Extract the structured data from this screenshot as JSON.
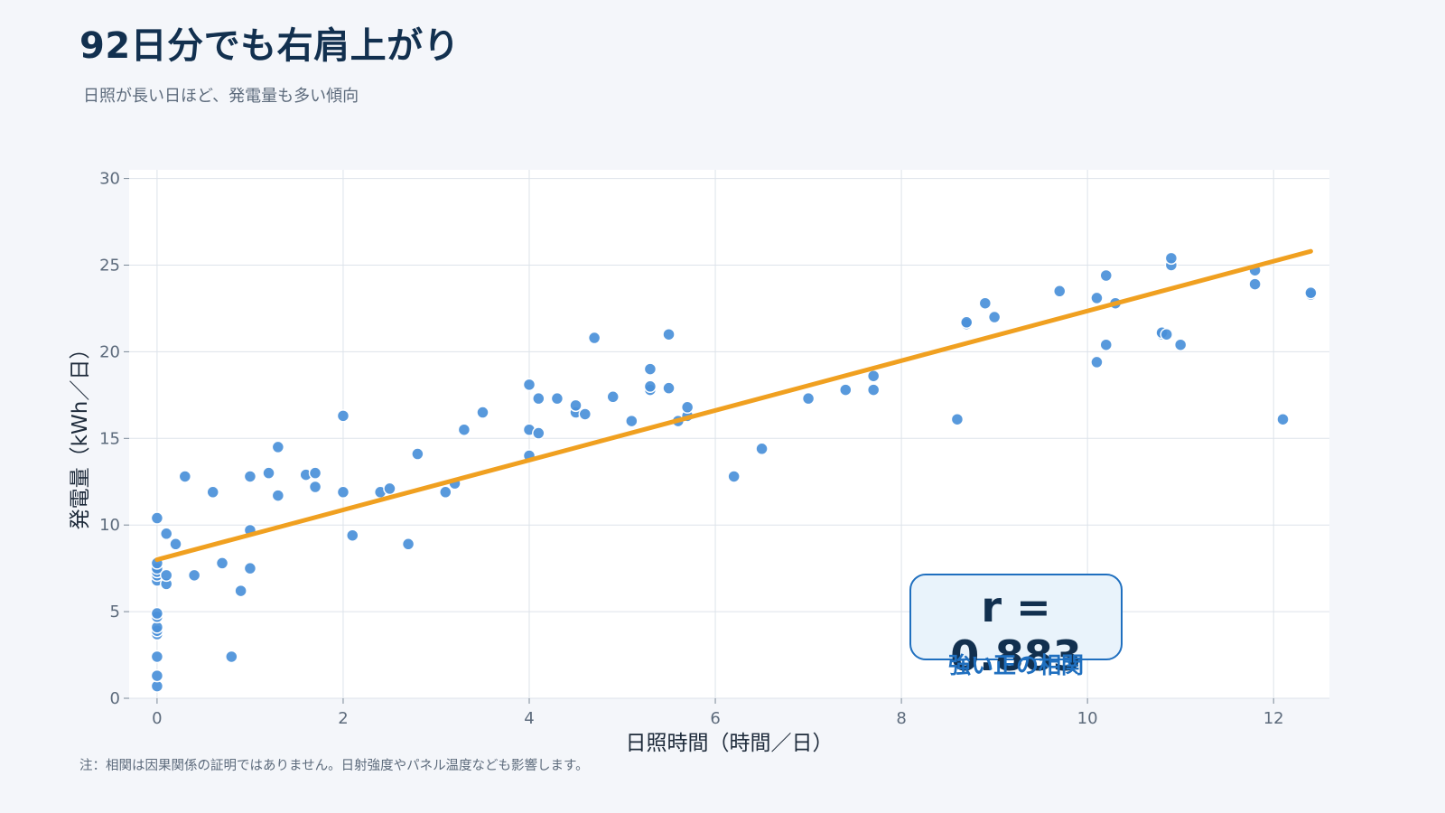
{
  "header": {
    "title": "92日分でも右肩上がり",
    "subtitle": "日照が長い日ほど、発電量も多い傾向"
  },
  "footer": {
    "note": "注：相関は因果関係の証明ではありません。日射強度やパネル温度なども影響します。"
  },
  "annotation": {
    "value": "r = 0.883",
    "caption": "強い正の相関"
  },
  "colors": {
    "point": "#4a90d9",
    "trend": "#f0a020",
    "grid": "#dde3ea",
    "plot_bg": "#ffffff"
  },
  "chart_data": {
    "type": "scatter",
    "xlabel": "日照時間（時間／日）",
    "ylabel": "発電量（kWh／日）",
    "xlim": [
      -0.3,
      12.6
    ],
    "ylim": [
      0,
      30.5
    ],
    "xticks": [
      0,
      2,
      4,
      6,
      8,
      10,
      12
    ],
    "yticks": [
      0,
      5,
      10,
      15,
      20,
      25,
      30
    ],
    "grid": true,
    "trendline": {
      "x": [
        0,
        12.4
      ],
      "y": [
        8.0,
        25.8
      ]
    },
    "points": [
      [
        0,
        0.7
      ],
      [
        0,
        1.3
      ],
      [
        0,
        2.4
      ],
      [
        0,
        3.7
      ],
      [
        0,
        3.9
      ],
      [
        0,
        4.1
      ],
      [
        0,
        4.7
      ],
      [
        0,
        4.9
      ],
      [
        0,
        6.8
      ],
      [
        0,
        7.1
      ],
      [
        0,
        7.3
      ],
      [
        0,
        7.5
      ],
      [
        0,
        7.8
      ],
      [
        0,
        10.4
      ],
      [
        0.1,
        6.6
      ],
      [
        0.1,
        7.1
      ],
      [
        0.1,
        9.5
      ],
      [
        0.2,
        8.9
      ],
      [
        0.3,
        12.8
      ],
      [
        0.4,
        7.1
      ],
      [
        0.6,
        11.9
      ],
      [
        0.7,
        7.8
      ],
      [
        0.8,
        2.4
      ],
      [
        0.9,
        6.2
      ],
      [
        1.0,
        7.5
      ],
      [
        1.0,
        9.7
      ],
      [
        1.0,
        12.8
      ],
      [
        1.2,
        13.0
      ],
      [
        1.3,
        11.7
      ],
      [
        1.3,
        14.5
      ],
      [
        1.6,
        12.9
      ],
      [
        1.7,
        12.2
      ],
      [
        1.7,
        13.0
      ],
      [
        2.0,
        11.9
      ],
      [
        2.0,
        16.3
      ],
      [
        2.1,
        9.4
      ],
      [
        2.4,
        11.9
      ],
      [
        2.5,
        12.1
      ],
      [
        2.7,
        8.9
      ],
      [
        2.8,
        14.1
      ],
      [
        3.1,
        11.9
      ],
      [
        3.2,
        12.4
      ],
      [
        3.3,
        15.5
      ],
      [
        3.5,
        16.5
      ],
      [
        4.0,
        14.0
      ],
      [
        4.0,
        15.5
      ],
      [
        4.0,
        18.1
      ],
      [
        4.1,
        15.3
      ],
      [
        4.1,
        17.3
      ],
      [
        4.3,
        17.3
      ],
      [
        4.5,
        16.5
      ],
      [
        4.5,
        16.9
      ],
      [
        4.6,
        16.4
      ],
      [
        4.7,
        20.8
      ],
      [
        4.9,
        17.4
      ],
      [
        5.1,
        16.0
      ],
      [
        5.3,
        17.8
      ],
      [
        5.3,
        18.0
      ],
      [
        5.3,
        19.0
      ],
      [
        5.5,
        17.9
      ],
      [
        5.5,
        21.0
      ],
      [
        5.6,
        16.0
      ],
      [
        5.7,
        16.3
      ],
      [
        5.7,
        16.8
      ],
      [
        6.2,
        12.8
      ],
      [
        6.5,
        14.4
      ],
      [
        7.0,
        17.3
      ],
      [
        7.4,
        17.8
      ],
      [
        7.7,
        17.8
      ],
      [
        7.7,
        18.6
      ],
      [
        8.6,
        16.1
      ],
      [
        8.7,
        21.6
      ],
      [
        8.7,
        21.7
      ],
      [
        8.9,
        22.8
      ],
      [
        9.0,
        22.0
      ],
      [
        9.7,
        23.5
      ],
      [
        10.1,
        19.4
      ],
      [
        10.1,
        23.1
      ],
      [
        10.2,
        20.4
      ],
      [
        10.2,
        24.4
      ],
      [
        10.3,
        22.8
      ],
      [
        10.8,
        21.0
      ],
      [
        10.8,
        21.1
      ],
      [
        10.9,
        25.0
      ],
      [
        10.9,
        25.4
      ],
      [
        11.0,
        20.4
      ],
      [
        11.8,
        23.9
      ],
      [
        11.8,
        24.7
      ],
      [
        12.1,
        16.1
      ],
      [
        12.4,
        23.3
      ],
      [
        12.4,
        23.4
      ],
      [
        10.85,
        21.0
      ]
    ]
  }
}
